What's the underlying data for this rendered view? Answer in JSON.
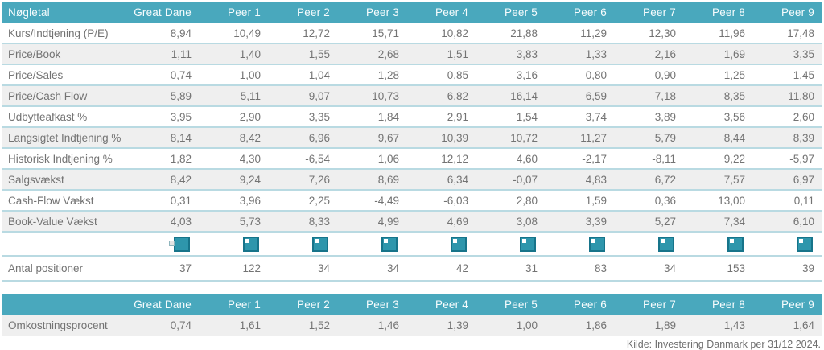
{
  "colors": {
    "header_bg": "#49A8BD",
    "header_text": "#F7FCFD",
    "row_alt_bg": "#EFEFEF",
    "separator": "#B9DAE2",
    "body_text": "#737373",
    "icon_fill": "#2E96AC",
    "icon_border": "#17748A"
  },
  "table1": {
    "header": [
      "Nøgletal",
      "Great Dane",
      "Peer 1",
      "Peer 2",
      "Peer 3",
      "Peer 4",
      "Peer 5",
      "Peer 6",
      "Peer 7",
      "Peer 8",
      "Peer 9"
    ],
    "rows": [
      {
        "label": "Kurs/Indtjening (P/E)",
        "values": [
          "8,94",
          "10,49",
          "12,72",
          "15,71",
          "10,82",
          "21,88",
          "11,29",
          "12,30",
          "11,96",
          "17,48"
        ]
      },
      {
        "label": "Price/Book",
        "values": [
          "1,11",
          "1,40",
          "1,55",
          "2,68",
          "1,51",
          "3,83",
          "1,33",
          "2,16",
          "1,69",
          "3,35"
        ]
      },
      {
        "label": "Price/Sales",
        "values": [
          "0,74",
          "1,00",
          "1,04",
          "1,28",
          "0,85",
          "3,16",
          "0,80",
          "0,90",
          "1,25",
          "1,45"
        ]
      },
      {
        "label": "Price/Cash Flow",
        "values": [
          "5,89",
          "5,11",
          "9,07",
          "10,73",
          "6,82",
          "16,14",
          "6,59",
          "7,18",
          "8,35",
          "11,80"
        ]
      },
      {
        "label": "Udbytteafkast %",
        "values": [
          "3,95",
          "2,90",
          "3,35",
          "1,84",
          "2,91",
          "1,54",
          "3,74",
          "3,89",
          "3,56",
          "2,60"
        ]
      },
      {
        "label": "Langsigtet Indtjening %",
        "values": [
          "8,14",
          "8,42",
          "6,96",
          "9,67",
          "10,39",
          "10,72",
          "11,27",
          "5,79",
          "8,44",
          "8,39"
        ]
      },
      {
        "label": "Historisk Indtjening %",
        "values": [
          "1,82",
          "4,30",
          "-6,54",
          "1,06",
          "12,12",
          "4,60",
          "-2,17",
          "-8,11",
          "9,22",
          "-5,97"
        ]
      },
      {
        "label": "Salgsvækst",
        "values": [
          "8,42",
          "9,24",
          "7,26",
          "8,69",
          "6,34",
          "-0,07",
          "4,83",
          "6,72",
          "7,57",
          "6,97"
        ]
      },
      {
        "label": "Cash-Flow Vækst",
        "values": [
          "0,31",
          "3,96",
          "2,25",
          "-4,49",
          "-6,03",
          "2,80",
          "1,59",
          "0,36",
          "13,00",
          "0,11"
        ]
      },
      {
        "label": "Book-Value Vækst",
        "values": [
          "4,03",
          "5,73",
          "8,33",
          "4,99",
          "4,69",
          "3,08",
          "3,39",
          "5,27",
          "7,34",
          "6,10"
        ]
      }
    ],
    "icon_row": {
      "icon": "portfolio-icon"
    },
    "positions_row": {
      "label": "Antal positioner",
      "values": [
        "37",
        "122",
        "34",
        "34",
        "42",
        "31",
        "83",
        "34",
        "153",
        "39"
      ]
    }
  },
  "table2": {
    "header": [
      "",
      "Great Dane",
      "Peer 1",
      "Peer 2",
      "Peer 3",
      "Peer 4",
      "Peer 5",
      "Peer 6",
      "Peer 7",
      "Peer 8",
      "Peer 9"
    ],
    "rows": [
      {
        "label": "Omkostningsprocent",
        "values": [
          "0,74",
          "1,61",
          "1,52",
          "1,46",
          "1,39",
          "1,00",
          "1,86",
          "1,89",
          "1,43",
          "1,64"
        ]
      }
    ]
  },
  "footer": {
    "source": "Kilde: Investering Danmark per 31/12 2024."
  }
}
